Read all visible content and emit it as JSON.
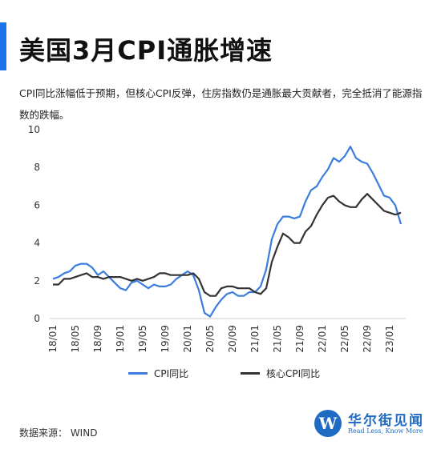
{
  "title": "美国3月CPI通胀增速",
  "subtitle": "CPI同比涨幅低于预期，但核心CPI反弹，住房指数仍是通胀最大贡献者，完全抵消了能源指数的跌幅。",
  "source": "数据来源： WIND",
  "logo": {
    "name": "华尔街见闻",
    "tagline": "Read Less, Know More",
    "mark": "W"
  },
  "colors": {
    "accent": "#1a73e8",
    "cpi": "#3b7ddd",
    "core": "#333333",
    "logo": "#1f6bc4"
  },
  "chart_data": {
    "type": "line",
    "title": "",
    "xlabel": "",
    "ylabel": "",
    "ylim": [
      0,
      10
    ],
    "yticks": [
      "0",
      "2",
      "4",
      "6",
      "8",
      "10"
    ],
    "grid": false,
    "legend_position": "bottom",
    "x_tick_labels": [
      "18/01",
      "18/05",
      "18/09",
      "19/01",
      "19/05",
      "19/09",
      "20/01",
      "20/05",
      "20/09",
      "21/01",
      "21/05",
      "21/09",
      "22/01",
      "22/05",
      "22/09",
      "23/01"
    ],
    "x": [
      "18/01",
      "18/02",
      "18/03",
      "18/04",
      "18/05",
      "18/06",
      "18/07",
      "18/08",
      "18/09",
      "18/10",
      "18/11",
      "18/12",
      "19/01",
      "19/02",
      "19/03",
      "19/04",
      "19/05",
      "19/06",
      "19/07",
      "19/08",
      "19/09",
      "19/10",
      "19/11",
      "19/12",
      "20/01",
      "20/02",
      "20/03",
      "20/04",
      "20/05",
      "20/06",
      "20/07",
      "20/08",
      "20/09",
      "20/10",
      "20/11",
      "20/12",
      "21/01",
      "21/02",
      "21/03",
      "21/04",
      "21/05",
      "21/06",
      "21/07",
      "21/08",
      "21/09",
      "21/10",
      "21/11",
      "21/12",
      "22/01",
      "22/02",
      "22/03",
      "22/04",
      "22/05",
      "22/06",
      "22/07",
      "22/08",
      "22/09",
      "22/10",
      "22/11",
      "22/12",
      "23/01",
      "23/02",
      "23/03"
    ],
    "series": [
      {
        "name": "CPI同比",
        "values": [
          2.1,
          2.2,
          2.4,
          2.5,
          2.8,
          2.9,
          2.9,
          2.7,
          2.3,
          2.5,
          2.2,
          1.9,
          1.6,
          1.5,
          1.9,
          2.0,
          1.8,
          1.6,
          1.8,
          1.7,
          1.7,
          1.8,
          2.1,
          2.3,
          2.5,
          2.3,
          1.5,
          0.3,
          0.1,
          0.6,
          1.0,
          1.3,
          1.4,
          1.2,
          1.2,
          1.4,
          1.4,
          1.7,
          2.6,
          4.2,
          5.0,
          5.4,
          5.4,
          5.3,
          5.4,
          6.2,
          6.8,
          7.0,
          7.5,
          7.9,
          8.5,
          8.3,
          8.6,
          9.1,
          8.5,
          8.3,
          8.2,
          7.7,
          7.1,
          6.5,
          6.4,
          6.0,
          5.0
        ]
      },
      {
        "name": "核心CPI同比",
        "values": [
          1.8,
          1.8,
          2.1,
          2.1,
          2.2,
          2.3,
          2.4,
          2.2,
          2.2,
          2.1,
          2.2,
          2.2,
          2.2,
          2.1,
          2.0,
          2.1,
          2.0,
          2.1,
          2.2,
          2.4,
          2.4,
          2.3,
          2.3,
          2.3,
          2.3,
          2.4,
          2.1,
          1.4,
          1.2,
          1.2,
          1.6,
          1.7,
          1.7,
          1.6,
          1.6,
          1.6,
          1.4,
          1.3,
          1.6,
          3.0,
          3.8,
          4.5,
          4.3,
          4.0,
          4.0,
          4.6,
          4.9,
          5.5,
          6.0,
          6.4,
          6.5,
          6.2,
          6.0,
          5.9,
          5.9,
          6.3,
          6.6,
          6.3,
          6.0,
          5.7,
          5.6,
          5.5,
          5.6
        ]
      }
    ]
  }
}
